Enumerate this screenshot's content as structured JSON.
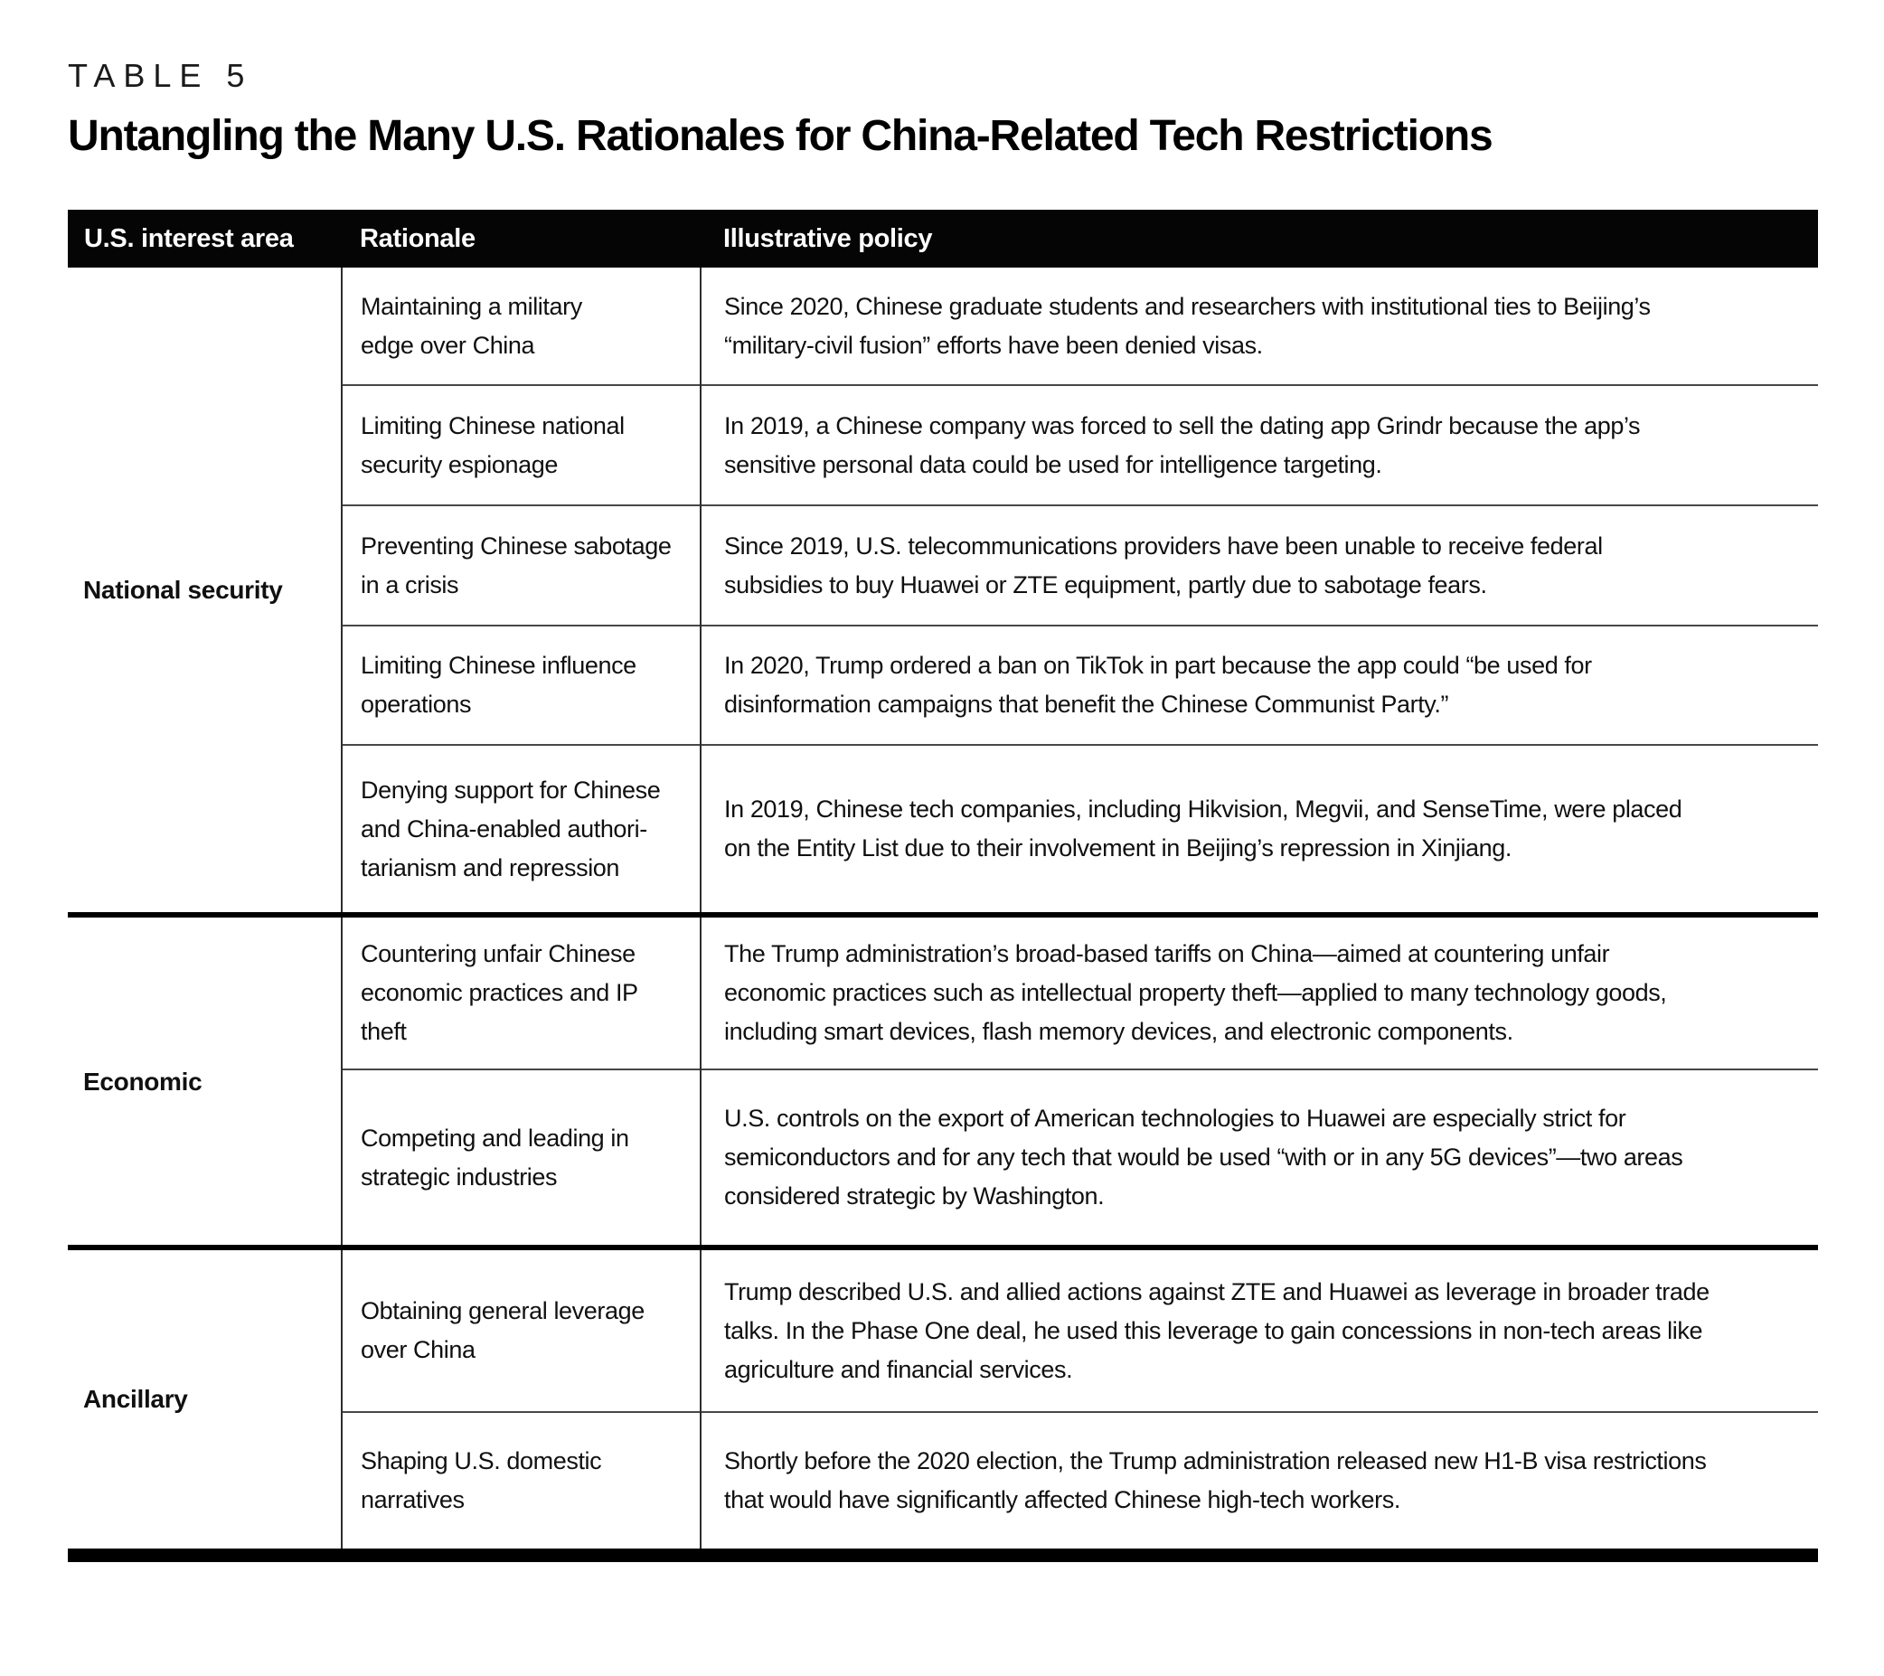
{
  "table_label": "TABLE 5",
  "title": "Untangling the Many U.S. Rationales for China-Related Tech Restrictions",
  "columns": [
    "U.S. interest area",
    "Rationale",
    "Illustrative policy"
  ],
  "sections": [
    {
      "interest_area": "National security",
      "rows": [
        {
          "rationale": "Maintaining a military\nedge over China",
          "policy": "Since 2020, Chinese graduate students and researchers with institutional ties to Beijing’s\n“military-civil fusion” efforts have been denied visas."
        },
        {
          "rationale": "Limiting Chinese national\nsecurity espionage",
          "policy": "In 2019, a Chinese company was forced to sell the dating app Grindr because the app’s\nsensitive personal data could be used for intelligence targeting."
        },
        {
          "rationale": "Preventing Chinese sabotage\nin a crisis",
          "policy": "Since 2019, U.S. telecommunications providers have been unable to receive federal\nsubsidies to buy Huawei or ZTE equipment, partly due to sabotage fears."
        },
        {
          "rationale": "Limiting Chinese influence\noperations",
          "policy": "In 2020, Trump ordered a ban on TikTok in part because the app could “be used for\ndisinformation campaigns that benefit the Chinese Communist Party.”"
        },
        {
          "rationale": "Denying support for Chinese\nand China-enabled authori-\ntarianism and repression",
          "policy": "In 2019, Chinese tech companies, including Hikvision, Megvii, and SenseTime, were placed\non the Entity List due to their involvement in Beijing’s repression in Xinjiang."
        }
      ]
    },
    {
      "interest_area": "Economic",
      "rows": [
        {
          "rationale": "Countering unfair Chinese\neconomic practices and IP\ntheft",
          "policy": "The Trump administration’s broad-based tariffs on China—aimed at countering unfair\neconomic practices such as intellectual property theft—applied to many technology goods,\nincluding smart devices, flash memory devices, and electronic components."
        },
        {
          "rationale": "Competing and leading in\nstrategic industries",
          "policy": "U.S. controls on the export of American technologies to Huawei are especially strict for\nsemiconductors and for any tech that would be used “with or in any 5G devices”—two areas\nconsidered strategic by Washington."
        }
      ]
    },
    {
      "interest_area": "Ancillary",
      "rows": [
        {
          "rationale": "Obtaining general leverage\nover China",
          "policy": "Trump described U.S. and allied actions against ZTE and Huawei as leverage in broader trade\ntalks. In the Phase One deal, he used this leverage to gain concessions in non-tech areas like\nagriculture and financial services."
        },
        {
          "rationale": "Shaping U.S. domestic\nnarratives",
          "policy": "Shortly before the 2020 election, the Trump administration released new H1-B visa restrictions\nthat would have significantly affected Chinese high-tech workers."
        }
      ]
    }
  ],
  "colors": {
    "header_bg": "#050505",
    "header_text": "#ffffff",
    "body_text": "#101010",
    "thin_line": "#474747",
    "divider": "#2e2e2e",
    "thick_line": "#000000"
  }
}
